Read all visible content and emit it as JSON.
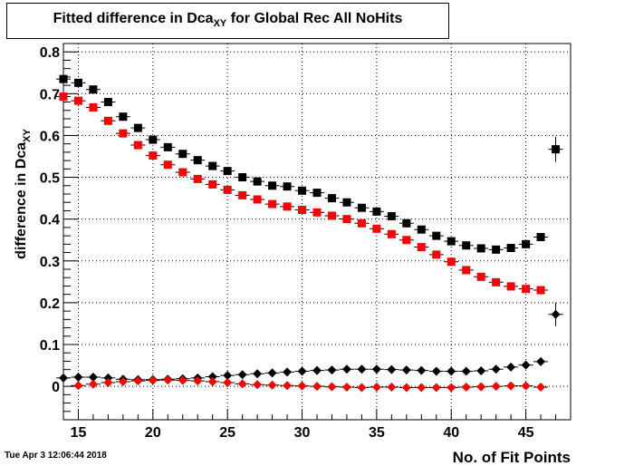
{
  "title": {
    "main": "Fitted difference in Dca",
    "sub": "XY",
    "rest": " for Global Rec All NoHits"
  },
  "timestamp": "Tue Apr  3 12:06:44 2018",
  "chart_data": {
    "type": "scatter",
    "title": "Fitted difference in DcaXY for Global Rec All NoHits",
    "xlabel": "No. of Fit Points",
    "ylabel": "difference in DcaXY",
    "xlim": [
      14,
      48
    ],
    "ylim": [
      -0.08,
      0.82
    ],
    "x_ticks": [
      15,
      20,
      25,
      30,
      35,
      40,
      45
    ],
    "x_tick_labels": [
      "15",
      "20",
      "25",
      "30",
      "35",
      "40",
      "45"
    ],
    "y_ticks": [
      0,
      0.1,
      0.2,
      0.3,
      0.4,
      0.5,
      0.6,
      0.7,
      0.8
    ],
    "y_tick_labels": [
      "0",
      "0.1",
      "0.2",
      "0.3",
      "0.4",
      "0.5",
      "0.6",
      "0.7",
      "0.8"
    ],
    "grid": true,
    "series": [
      {
        "marker": "square",
        "color": "#000000",
        "x": [
          14,
          15,
          16,
          17,
          18,
          19,
          20,
          21,
          22,
          23,
          24,
          25,
          26,
          27,
          28,
          29,
          30,
          31,
          32,
          33,
          34,
          35,
          36,
          37,
          38,
          39,
          40,
          41,
          42,
          43,
          44,
          45,
          46,
          47
        ],
        "y": [
          0.735,
          0.726,
          0.71,
          0.68,
          0.645,
          0.618,
          0.59,
          0.572,
          0.556,
          0.541,
          0.527,
          0.515,
          0.5,
          0.49,
          0.48,
          0.478,
          0.468,
          0.463,
          0.45,
          0.44,
          0.427,
          0.418,
          0.407,
          0.39,
          0.375,
          0.36,
          0.347,
          0.337,
          0.33,
          0.327,
          0.331,
          0.34,
          0.357,
          0.567
        ],
        "yerr": [
          0.003,
          0.003,
          0.003,
          0.003,
          0.003,
          0.003,
          0.003,
          0.003,
          0.003,
          0.003,
          0.003,
          0.003,
          0.003,
          0.003,
          0.003,
          0.003,
          0.003,
          0.003,
          0.003,
          0.003,
          0.003,
          0.003,
          0.003,
          0.003,
          0.003,
          0.003,
          0.003,
          0.003,
          0.003,
          0.003,
          0.003,
          0.003,
          0.004,
          0.03
        ]
      },
      {
        "marker": "square",
        "color": "#ff0000",
        "x": [
          14,
          15,
          16,
          17,
          18,
          19,
          20,
          21,
          22,
          23,
          24,
          25,
          26,
          27,
          28,
          29,
          30,
          31,
          32,
          33,
          34,
          35,
          36,
          37,
          38,
          39,
          40,
          41,
          42,
          43,
          44,
          45,
          46
        ],
        "y": [
          0.693,
          0.683,
          0.667,
          0.635,
          0.605,
          0.577,
          0.552,
          0.53,
          0.512,
          0.496,
          0.483,
          0.47,
          0.457,
          0.447,
          0.436,
          0.43,
          0.422,
          0.416,
          0.408,
          0.4,
          0.39,
          0.377,
          0.364,
          0.35,
          0.333,
          0.315,
          0.298,
          0.278,
          0.262,
          0.249,
          0.239,
          0.233,
          0.23
        ],
        "yerr": [
          0.003,
          0.003,
          0.003,
          0.003,
          0.003,
          0.003,
          0.003,
          0.003,
          0.003,
          0.003,
          0.003,
          0.003,
          0.003,
          0.003,
          0.003,
          0.003,
          0.003,
          0.003,
          0.003,
          0.003,
          0.003,
          0.003,
          0.003,
          0.003,
          0.003,
          0.003,
          0.003,
          0.003,
          0.003,
          0.003,
          0.003,
          0.003,
          0.003
        ]
      },
      {
        "marker": "diamond",
        "color": "#000000",
        "x": [
          14,
          15,
          16,
          17,
          18,
          19,
          20,
          21,
          22,
          23,
          24,
          25,
          26,
          27,
          28,
          29,
          30,
          31,
          32,
          33,
          34,
          35,
          36,
          37,
          38,
          39,
          40,
          41,
          42,
          43,
          44,
          45,
          46,
          47
        ],
        "y": [
          0.02,
          0.022,
          0.022,
          0.02,
          0.017,
          0.016,
          0.016,
          0.017,
          0.018,
          0.02,
          0.023,
          0.026,
          0.028,
          0.03,
          0.032,
          0.034,
          0.036,
          0.038,
          0.039,
          0.041,
          0.041,
          0.041,
          0.04,
          0.039,
          0.038,
          0.036,
          0.036,
          0.036,
          0.037,
          0.041,
          0.046,
          0.051,
          0.059,
          0.172
        ],
        "yerr": [
          0.003,
          0.003,
          0.003,
          0.003,
          0.003,
          0.003,
          0.003,
          0.003,
          0.003,
          0.003,
          0.003,
          0.003,
          0.003,
          0.003,
          0.003,
          0.003,
          0.003,
          0.003,
          0.003,
          0.003,
          0.003,
          0.003,
          0.003,
          0.003,
          0.003,
          0.003,
          0.003,
          0.003,
          0.003,
          0.003,
          0.003,
          0.003,
          0.004,
          0.028
        ]
      },
      {
        "marker": "diamond",
        "color": "#ff0000",
        "x": [
          15,
          16,
          17,
          18,
          19,
          20,
          21,
          22,
          23,
          24,
          25,
          26,
          27,
          28,
          29,
          30,
          31,
          32,
          33,
          34,
          35,
          36,
          37,
          38,
          39,
          40,
          41,
          42,
          43,
          44,
          45,
          46
        ],
        "y": [
          0.002,
          0.005,
          0.009,
          0.011,
          0.013,
          0.014,
          0.015,
          0.014,
          0.013,
          0.011,
          0.009,
          0.006,
          0.004,
          0.003,
          0.002,
          0.001,
          0.0,
          -0.001,
          -0.002,
          -0.003,
          -0.002,
          -0.002,
          -0.003,
          -0.003,
          -0.003,
          -0.003,
          -0.002,
          -0.001,
          0.0,
          0.001,
          0.001,
          -0.002
        ],
        "yerr": [
          0.003,
          0.003,
          0.003,
          0.003,
          0.003,
          0.003,
          0.003,
          0.003,
          0.003,
          0.003,
          0.003,
          0.003,
          0.003,
          0.003,
          0.003,
          0.003,
          0.003,
          0.003,
          0.003,
          0.003,
          0.003,
          0.003,
          0.003,
          0.003,
          0.003,
          0.003,
          0.003,
          0.003,
          0.003,
          0.003,
          0.003,
          0.003
        ]
      }
    ]
  }
}
